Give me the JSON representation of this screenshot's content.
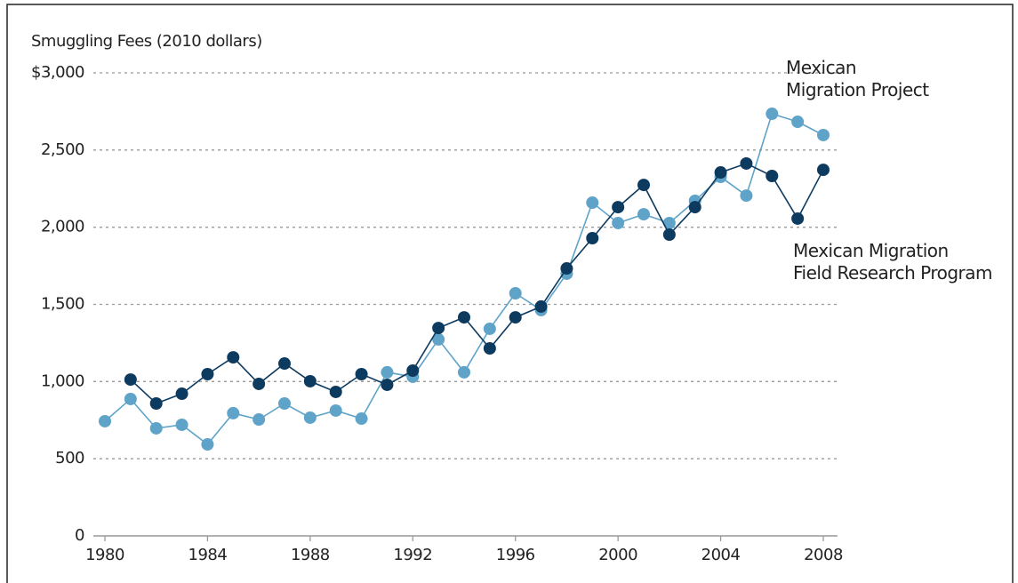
{
  "chart_data": {
    "type": "line",
    "y_axis_title": "Smuggling Fees (2010 dollars)",
    "x": [
      1980,
      1981,
      1982,
      1983,
      1984,
      1985,
      1986,
      1987,
      1988,
      1989,
      1990,
      1991,
      1992,
      1993,
      1994,
      1995,
      1996,
      1997,
      1998,
      1999,
      2000,
      2001,
      2002,
      2003,
      2004,
      2005,
      2006,
      2007,
      2008
    ],
    "series": [
      {
        "name": "Mexican Migration Project",
        "color": "#5fa3c9",
        "values": [
          743,
          887,
          697,
          720,
          593,
          795,
          754,
          858,
          766,
          812,
          760,
          1060,
          1031,
          1273,
          1060,
          1342,
          1572,
          1463,
          1699,
          2159,
          2027,
          2084,
          2027,
          2171,
          2326,
          2205,
          2735,
          2683,
          2597
        ]
      },
      {
        "name": "Mexican Migration Field Research Program",
        "color": "#0d3a5f",
        "values": [
          null,
          1013,
          858,
          921,
          1048,
          1157,
          985,
          1117,
          1002,
          933,
          1048,
          979,
          1071,
          1347,
          1416,
          1215,
          1416,
          1486,
          1733,
          1929,
          2130,
          2274,
          1952,
          2130,
          2355,
          2413,
          2332,
          2056,
          2372
        ]
      }
    ],
    "xlim": [
      1980,
      2008
    ],
    "xticks": [
      1980,
      1984,
      1988,
      1992,
      1996,
      2000,
      2004,
      2008
    ],
    "ylim": [
      0,
      3000
    ],
    "yticks": [
      0,
      500,
      {
        "value": 1000,
        "label": "1,000"
      },
      {
        "value": 1500,
        "label": "1,500"
      },
      {
        "value": 2000,
        "label": "2,000"
      },
      {
        "value": 2500,
        "label": "2,500"
      },
      {
        "value": 3000,
        "label": "$3,000"
      }
    ],
    "grid": true
  }
}
